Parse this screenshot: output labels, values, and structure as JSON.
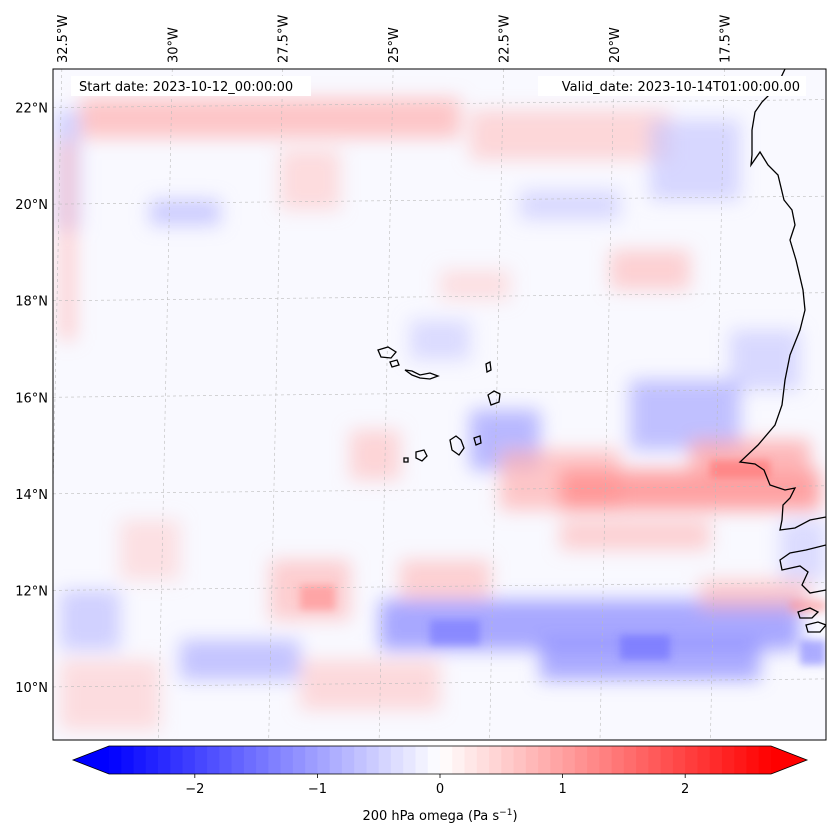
{
  "annotations": {
    "start_date": "Start date: 2023-10-12_00:00:00",
    "valid_date": "Valid_date: 2023-10-14T01:00:00.00"
  },
  "map": {
    "extent_lon": [
      -32.7,
      -15.2
    ],
    "extent_lat": [
      8.9,
      22.8
    ],
    "lon_ticks": [
      {
        "value": -32.5,
        "label": "32.5°W"
      },
      {
        "value": -30.0,
        "label": "30°W"
      },
      {
        "value": -27.5,
        "label": "27.5°W"
      },
      {
        "value": -25.0,
        "label": "25°W"
      },
      {
        "value": -22.5,
        "label": "22.5°W"
      },
      {
        "value": -20.0,
        "label": "20°W"
      },
      {
        "value": -17.5,
        "label": "17.5°W"
      }
    ],
    "lat_ticks": [
      {
        "value": 22,
        "label": "22°N"
      },
      {
        "value": 20,
        "label": "20°N"
      },
      {
        "value": 18,
        "label": "18°N"
      },
      {
        "value": 16,
        "label": "16°N"
      },
      {
        "value": 14,
        "label": "14°N"
      },
      {
        "value": 12,
        "label": "12°N"
      },
      {
        "value": 10,
        "label": "10°N"
      }
    ],
    "gridlines": true,
    "field": "200 hPa omega, blue = negative (ascent), red = positive (descent)",
    "colors": {
      "negative": "#0000ff",
      "zero": "#ffffff",
      "positive": "#ff0000",
      "coastline": "#000000",
      "grid": "#bbbbbb"
    }
  },
  "colorbar": {
    "label_text": "200 hPa omega (Pa s",
    "label_exponent": "−1",
    "label_close": ")",
    "range": [
      -2.7,
      2.7
    ],
    "extend": "both",
    "ticks": [
      {
        "value": -2,
        "label": "−2"
      },
      {
        "value": -1,
        "label": "−1"
      },
      {
        "value": 0,
        "label": "0"
      },
      {
        "value": 1,
        "label": "1"
      },
      {
        "value": 2,
        "label": "2"
      }
    ]
  }
}
